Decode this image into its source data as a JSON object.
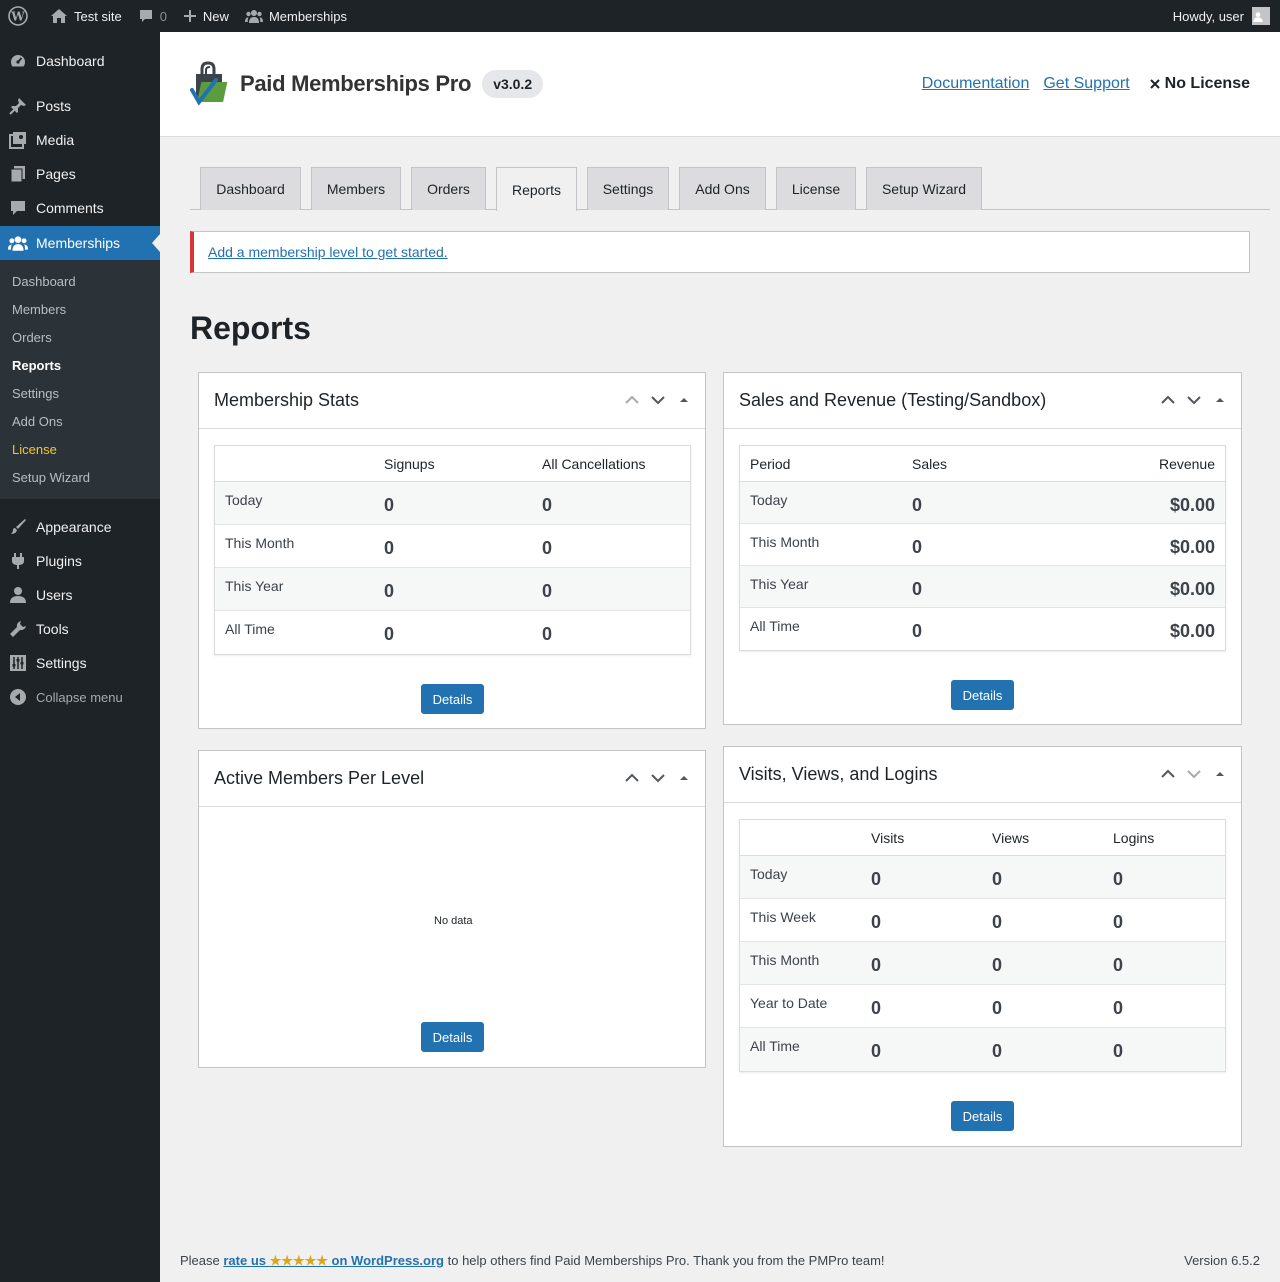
{
  "admin_bar": {
    "site_name": "Test site",
    "comments_count": "0",
    "new_label": "New",
    "memberships_label": "Memberships",
    "howdy": "Howdy, user"
  },
  "sidebar": {
    "items_top": [
      {
        "label": "Dashboard",
        "icon": "dashboard-icon"
      },
      {
        "label": "Posts",
        "icon": "pin-icon"
      },
      {
        "label": "Media",
        "icon": "media-icon"
      },
      {
        "label": "Pages",
        "icon": "pages-icon"
      },
      {
        "label": "Comments",
        "icon": "comment-icon"
      }
    ],
    "current": {
      "label": "Memberships",
      "icon": "groups-icon"
    },
    "submenu": [
      "Dashboard",
      "Members",
      "Orders",
      "Reports",
      "Settings",
      "Add Ons",
      "License",
      "Setup Wizard"
    ],
    "items_bottom": [
      {
        "label": "Appearance",
        "icon": "brush-icon"
      },
      {
        "label": "Plugins",
        "icon": "plugin-icon"
      },
      {
        "label": "Users",
        "icon": "user-icon"
      },
      {
        "label": "Tools",
        "icon": "wrench-icon"
      },
      {
        "label": "Settings",
        "icon": "sliders-icon"
      }
    ],
    "collapse": "Collapse menu"
  },
  "header": {
    "logo_text": "Paid Memberships Pro",
    "version": "v3.0.2",
    "documentation": "Documentation",
    "get_support": "Get Support",
    "no_license": "No License"
  },
  "tabs": [
    "Dashboard",
    "Members",
    "Orders",
    "Reports",
    "Settings",
    "Add Ons",
    "License",
    "Setup Wizard"
  ],
  "active_tab": "Reports",
  "notice": {
    "link_text": "Add a membership level to get started."
  },
  "page_title": "Reports",
  "membership_stats": {
    "title": "Membership Stats",
    "columns": [
      "",
      "Signups",
      "All Cancellations"
    ],
    "rows": [
      {
        "label": "Today",
        "signups": "0",
        "cancellations": "0"
      },
      {
        "label": "This Month",
        "signups": "0",
        "cancellations": "0"
      },
      {
        "label": "This Year",
        "signups": "0",
        "cancellations": "0"
      },
      {
        "label": "All Time",
        "signups": "0",
        "cancellations": "0"
      }
    ],
    "button": "Details"
  },
  "sales_revenue": {
    "title": "Sales and Revenue (Testing/Sandbox)",
    "columns": [
      "Period",
      "Sales",
      "Revenue"
    ],
    "rows": [
      {
        "label": "Today",
        "sales": "0",
        "revenue": "$0.00"
      },
      {
        "label": "This Month",
        "sales": "0",
        "revenue": "$0.00"
      },
      {
        "label": "This Year",
        "sales": "0",
        "revenue": "$0.00"
      },
      {
        "label": "All Time",
        "sales": "0",
        "revenue": "$0.00"
      }
    ],
    "button": "Details"
  },
  "active_members": {
    "title": "Active Members Per Level",
    "no_data": "No data",
    "button": "Details"
  },
  "visits_views_logins": {
    "title": "Visits, Views, and Logins",
    "columns": [
      "",
      "Visits",
      "Views",
      "Logins"
    ],
    "rows": [
      {
        "label": "Today",
        "visits": "0",
        "views": "0",
        "logins": "0"
      },
      {
        "label": "This Week",
        "visits": "0",
        "views": "0",
        "logins": "0"
      },
      {
        "label": "This Month",
        "visits": "0",
        "views": "0",
        "logins": "0"
      },
      {
        "label": "Year to Date",
        "visits": "0",
        "views": "0",
        "logins": "0"
      },
      {
        "label": "All Time",
        "visits": "0",
        "views": "0",
        "logins": "0"
      }
    ],
    "button": "Details"
  },
  "footer": {
    "prefix": "Please",
    "rate_link": "rate us",
    "stars": "★★★★★",
    "rate_suffix": "on WordPress.org",
    "suffix": "to help others find Paid Memberships Pro. Thank you from the PMPro team!",
    "version": "Version 6.5.2"
  },
  "colors": {
    "accent": "#2271b1",
    "sidebar_bg": "#1d2327",
    "notice_border": "#d63638",
    "license_highlight": "#f0c33c"
  }
}
